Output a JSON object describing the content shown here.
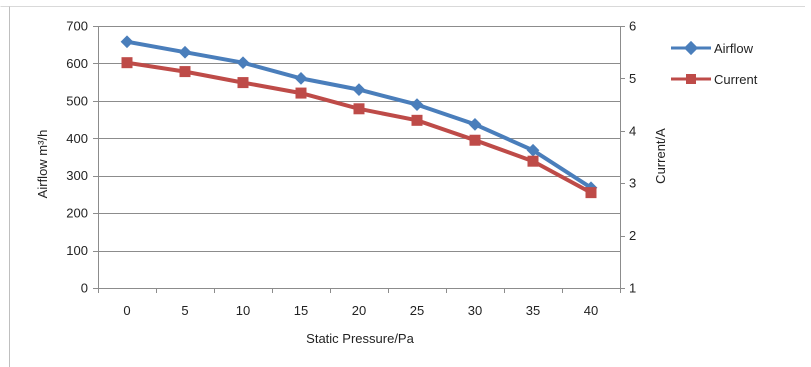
{
  "chart_data": {
    "type": "line",
    "title": "",
    "x": [
      0,
      5,
      10,
      15,
      20,
      25,
      30,
      35,
      40
    ],
    "x_tick_labels": [
      "0",
      "5",
      "10",
      "15",
      "20",
      "25",
      "30",
      "35",
      "40"
    ],
    "xlabel": "Static Pressure/Pa",
    "ylabel_left": "Airflow  m³/h",
    "ylabel_right": "Current/A",
    "ylim_left": [
      0,
      700
    ],
    "yticks_left": [
      0,
      100,
      200,
      300,
      400,
      500,
      600,
      700
    ],
    "ylim_right": [
      1,
      6
    ],
    "yticks_right": [
      1,
      2,
      3,
      4,
      5,
      6
    ],
    "grid": true,
    "legend_position": "right",
    "series": [
      {
        "name": "Airflow",
        "axis": "left",
        "marker": "diamond",
        "color": "#4a7ebb",
        "values": [
          658,
          630,
          602,
          560,
          530,
          490,
          437,
          368,
          268
        ]
      },
      {
        "name": "Current",
        "axis": "right",
        "marker": "square",
        "color": "#be4b48",
        "values": [
          5.3,
          5.13,
          4.92,
          4.72,
          4.42,
          4.2,
          3.82,
          3.42,
          2.82
        ]
      }
    ]
  }
}
